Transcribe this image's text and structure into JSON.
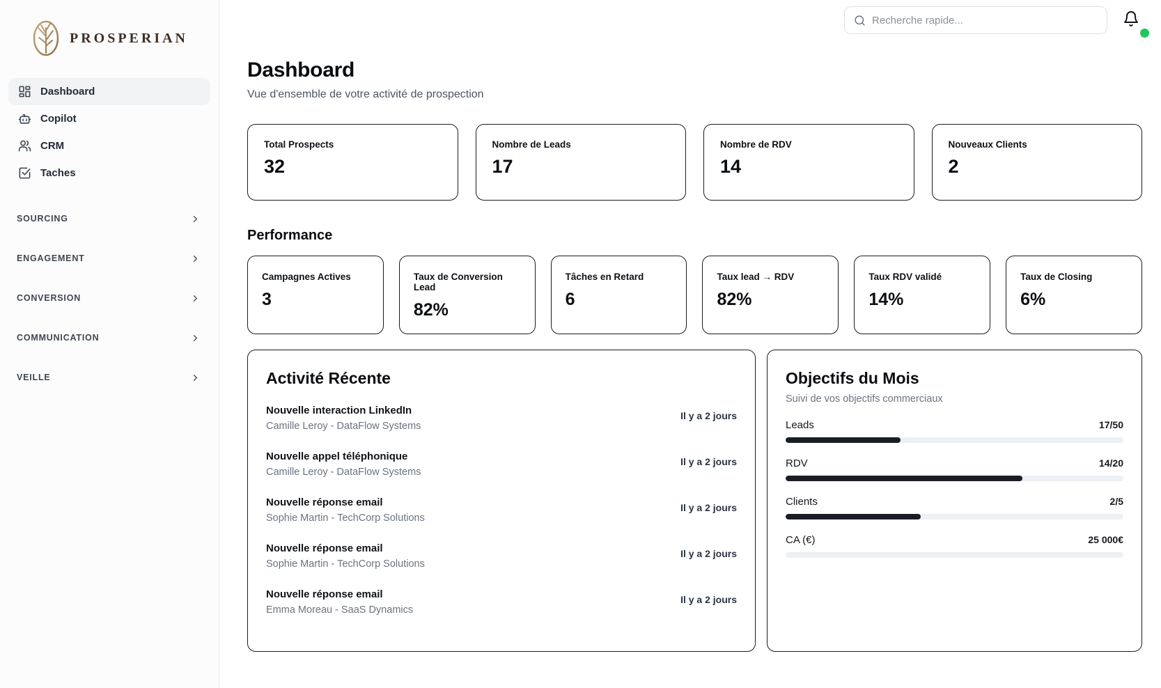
{
  "brand": {
    "name": "PROSPERIAN",
    "logo_gold_light": "#c9a97e",
    "logo_gold_dark": "#8a6a44",
    "wordmark_color": "#3c2f26"
  },
  "topbar": {
    "search_placeholder": "Recherche rapide...",
    "status_dot_color": "#22c55e"
  },
  "sidebar": {
    "items": [
      {
        "label": "Dashboard",
        "icon": "dashboard-grid-icon",
        "active": true
      },
      {
        "label": "Copilot",
        "icon": "bot-icon",
        "active": false
      },
      {
        "label": "CRM",
        "icon": "users-icon",
        "active": false
      },
      {
        "label": "Taches",
        "icon": "check-square-icon",
        "active": false
      }
    ],
    "sections": [
      {
        "label": "SOURCING"
      },
      {
        "label": "ENGAGEMENT"
      },
      {
        "label": "CONVERSION"
      },
      {
        "label": "COMMUNICATION"
      },
      {
        "label": "VEILLE"
      }
    ]
  },
  "header": {
    "title": "Dashboard",
    "subtitle": "Vue d'ensemble de votre activité de prospection"
  },
  "stats": [
    {
      "label": "Total Prospects",
      "value": "32"
    },
    {
      "label": "Nombre de Leads",
      "value": "17"
    },
    {
      "label": "Nombre de RDV",
      "value": "14"
    },
    {
      "label": "Nouveaux Clients",
      "value": "2"
    }
  ],
  "performance": {
    "title": "Performance",
    "cards": [
      {
        "label": "Campagnes Actives",
        "value": "3"
      },
      {
        "label": "Taux de Conversion Lead",
        "value": "82%"
      },
      {
        "label": "Tâches en Retard",
        "value": "6"
      },
      {
        "label": "Taux lead → RDV",
        "value": "82%"
      },
      {
        "label": "Taux RDV validé",
        "value": "14%"
      },
      {
        "label": "Taux de Closing",
        "value": "6%"
      }
    ]
  },
  "activity": {
    "title": "Activité Récente",
    "items": [
      {
        "title": "Nouvelle interaction LinkedIn",
        "subtitle": "Camille Leroy - DataFlow Systems",
        "time": "Il y a 2 jours"
      },
      {
        "title": "Nouvelle appel téléphonique",
        "subtitle": "Camille Leroy - DataFlow Systems",
        "time": "Il y a 2 jours"
      },
      {
        "title": "Nouvelle réponse email",
        "subtitle": "Sophie Martin - TechCorp Solutions",
        "time": "Il y a 2 jours"
      },
      {
        "title": "Nouvelle réponse email",
        "subtitle": "Sophie Martin - TechCorp Solutions",
        "time": "Il y a 2 jours"
      },
      {
        "title": "Nouvelle réponse email",
        "subtitle": "Emma Moreau - SaaS Dynamics",
        "time": "Il y a 2 jours"
      }
    ]
  },
  "goals": {
    "title": "Objectifs du Mois",
    "subtitle": "Suivi de vos objectifs commerciaux",
    "items": [
      {
        "label": "Leads",
        "value": "17/50",
        "percent": 34
      },
      {
        "label": "RDV",
        "value": "14/20",
        "percent": 70
      },
      {
        "label": "Clients",
        "value": "2/5",
        "percent": 40
      },
      {
        "label": "CA (€)",
        "value": "25 000€",
        "percent": 0
      }
    ]
  }
}
